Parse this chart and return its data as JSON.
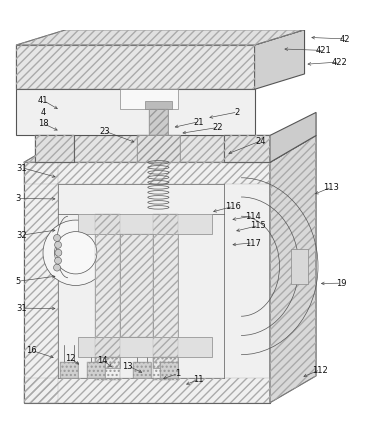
{
  "background_color": "#ffffff",
  "line_color": "#555555",
  "fig_width": 3.86,
  "fig_height": 4.44,
  "dpi": 100
}
